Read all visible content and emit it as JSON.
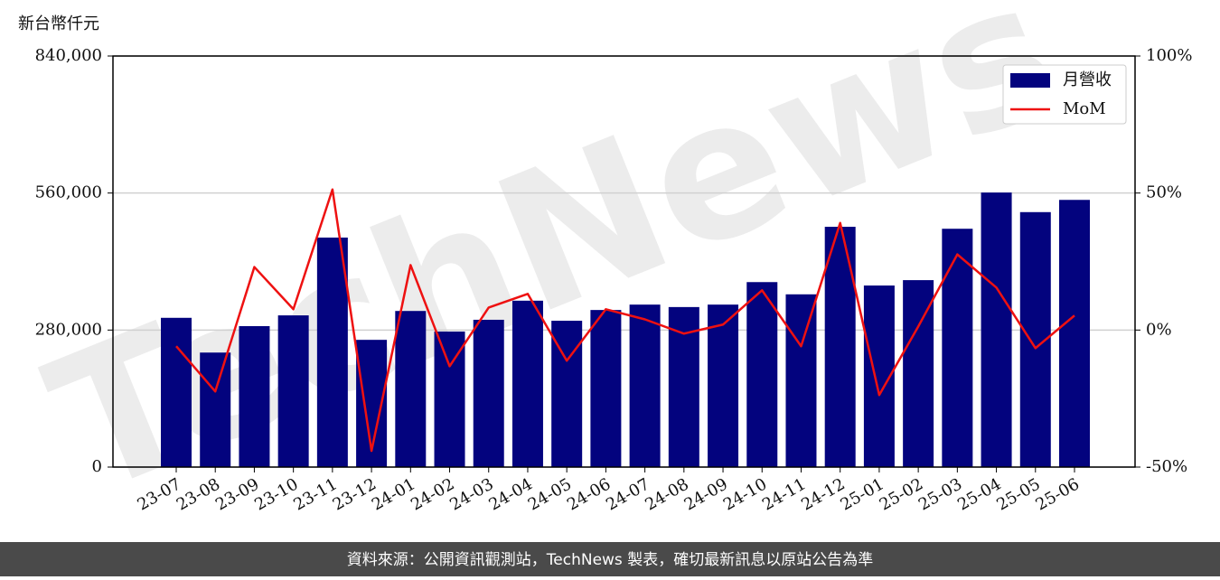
{
  "chart_data": {
    "type": "bar_line",
    "y_label": "新台幣仟元",
    "watermark": "TechNews",
    "source": "資料來源：公開資訊觀測站，TechNews 製表，確切最新訊息以原站公告為準",
    "categories": [
      "23-07",
      "23-08",
      "23-09",
      "23-10",
      "23-11",
      "23-12",
      "24-01",
      "24-02",
      "24-03",
      "24-04",
      "24-05",
      "24-06",
      "24-07",
      "24-08",
      "24-09",
      "24-10",
      "24-11",
      "24-12",
      "25-01",
      "25-02",
      "25-03",
      "25-04",
      "25-05",
      "25-06"
    ],
    "series": [
      {
        "name": "月營收",
        "type": "bar",
        "axis": "y",
        "color": "#03037e",
        "values": [
          305000,
          234000,
          288000,
          310000,
          469000,
          260000,
          319000,
          277000,
          301000,
          340000,
          299000,
          321000,
          332000,
          327000,
          332000,
          378000,
          353000,
          491000,
          371000,
          382000,
          487000,
          561000,
          521000,
          546000
        ]
      },
      {
        "name": "MoM",
        "type": "line",
        "axis": "y2",
        "color": "#ee1111",
        "values": [
          -5.9,
          -22.4,
          23.0,
          7.6,
          51.3,
          -44.1,
          23.7,
          -13.2,
          8.2,
          13.2,
          -11.2,
          7.6,
          3.9,
          -1.3,
          2.0,
          14.5,
          -5.9,
          39.1,
          -23.7,
          1.3,
          27.6,
          15.5,
          -6.6,
          5.3
        ]
      }
    ],
    "ylim": [
      0,
      840000
    ],
    "yticks": [
      0,
      {
        "value": 280000,
        "label": "280,000"
      },
      {
        "value": 560000,
        "label": "560,000"
      },
      {
        "value": 840000,
        "label": "840,000"
      }
    ],
    "y2lim": [
      -50,
      100
    ],
    "y2ticks": [
      {
        "value": -50,
        "label": "-50%"
      },
      {
        "value": 0,
        "label": "0%"
      },
      {
        "value": 50,
        "label": "50%"
      },
      {
        "value": 100,
        "label": "100%"
      }
    ],
    "grid": true,
    "legend": "upper right"
  }
}
